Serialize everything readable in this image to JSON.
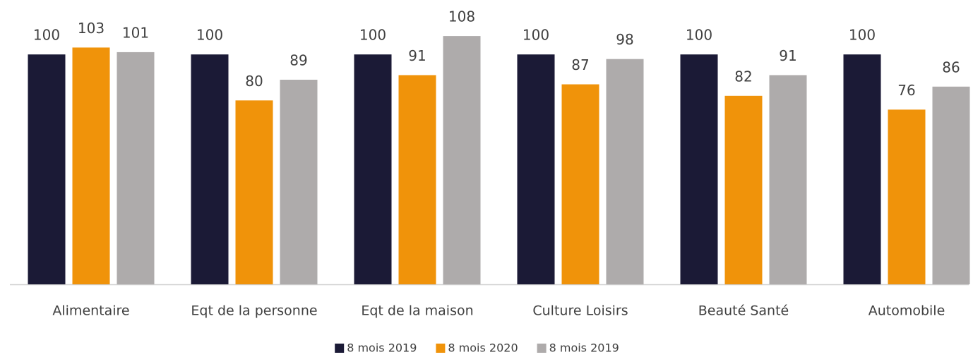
{
  "chart_data": {
    "type": "bar",
    "categories": [
      "Alimentaire",
      "Eqt de la personne",
      "Eqt de la maison",
      "Culture Loisirs",
      "Beauté Santé",
      "Automobile"
    ],
    "series": [
      {
        "name": "8 mois 2019",
        "color": "#1b1a36",
        "values": [
          100,
          100,
          100,
          100,
          100,
          100
        ]
      },
      {
        "name": "8 mois 2020",
        "color": "#f0930a",
        "values": [
          103,
          80,
          91,
          87,
          82,
          76
        ]
      },
      {
        "name": "8 mois 2019",
        "color": "#aeabab",
        "values": [
          101,
          89,
          108,
          98,
          91,
          86
        ]
      }
    ],
    "ylim": [
      0,
      120
    ]
  }
}
